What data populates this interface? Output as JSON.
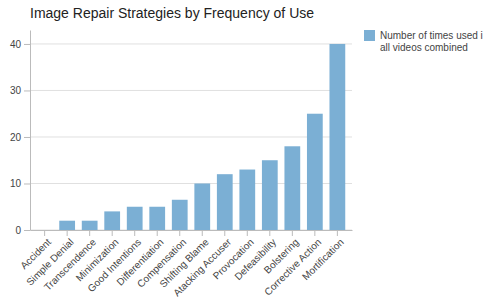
{
  "chart_data": {
    "type": "bar",
    "title": "Image Repair Strategies by Frequency of Use",
    "categories": [
      "Accident",
      "Simple Denial",
      "Transcendence",
      "Minimization",
      "Good Intentions",
      "Differentiation",
      "Compensation",
      "Shifting Blame",
      "Atacking Accuser",
      "Provocation",
      "Defeasibility",
      "Bolstering",
      "Corrective Action",
      "Mortification"
    ],
    "series": [
      {
        "name": "Number of times used i\nall videos combined",
        "color": "#7bafd4",
        "values": [
          0,
          2,
          2,
          4,
          5,
          5,
          6.5,
          10,
          12,
          13,
          15,
          18,
          25,
          40
        ]
      }
    ],
    "ylim": [
      0,
      43
    ],
    "yticks": [
      0,
      10,
      20,
      30,
      40
    ],
    "grid": true,
    "legend": "right"
  }
}
